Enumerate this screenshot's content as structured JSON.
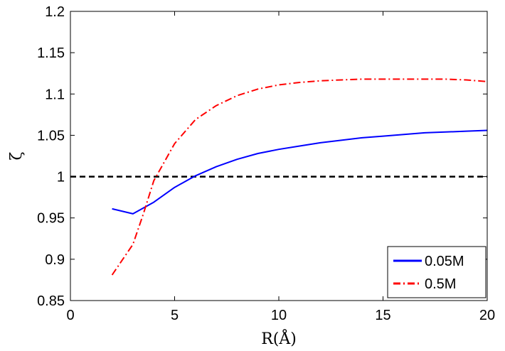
{
  "chart_data": {
    "type": "line",
    "title": "",
    "xlabel": "R(Å)",
    "ylabel": "ζ",
    "xlim": [
      0,
      20
    ],
    "ylim": [
      0.85,
      1.2
    ],
    "x_ticks": [
      0,
      5,
      10,
      15,
      20
    ],
    "x_tick_labels": [
      "0",
      "5",
      "10",
      "15",
      "20"
    ],
    "y_ticks": [
      0.85,
      0.9,
      0.95,
      1.0,
      1.05,
      1.1,
      1.15,
      1.2
    ],
    "y_tick_labels": [
      "0.85",
      "0.9",
      "0.95",
      "1",
      "1.05",
      "1.1",
      "1.15",
      "1.2"
    ],
    "grid": false,
    "legend_position": "bottom-right",
    "series": [
      {
        "name": "0.05M",
        "color": "#0000ff",
        "style": "solid",
        "x": [
          2,
          3,
          4,
          5,
          6,
          7,
          8,
          9,
          10,
          11,
          12,
          13,
          14,
          15,
          16,
          17,
          18,
          19,
          20
        ],
        "y": [
          0.961,
          0.955,
          0.969,
          0.987,
          1.001,
          1.012,
          1.021,
          1.028,
          1.033,
          1.037,
          1.041,
          1.044,
          1.047,
          1.049,
          1.051,
          1.053,
          1.054,
          1.055,
          1.056
        ]
      },
      {
        "name": "0.5M",
        "color": "#ff0000",
        "style": "dashdot",
        "x": [
          2,
          3,
          3.5,
          4,
          5,
          6,
          7,
          8,
          9,
          10,
          11,
          12,
          13,
          14,
          15,
          16,
          17,
          18,
          19,
          20
        ],
        "y": [
          0.881,
          0.918,
          0.955,
          0.995,
          1.04,
          1.069,
          1.086,
          1.098,
          1.106,
          1.111,
          1.114,
          1.116,
          1.117,
          1.118,
          1.118,
          1.118,
          1.118,
          1.118,
          1.117,
          1.115
        ]
      }
    ],
    "reference_line": {
      "y": 1.0,
      "color": "#000000",
      "style": "dashed"
    }
  }
}
